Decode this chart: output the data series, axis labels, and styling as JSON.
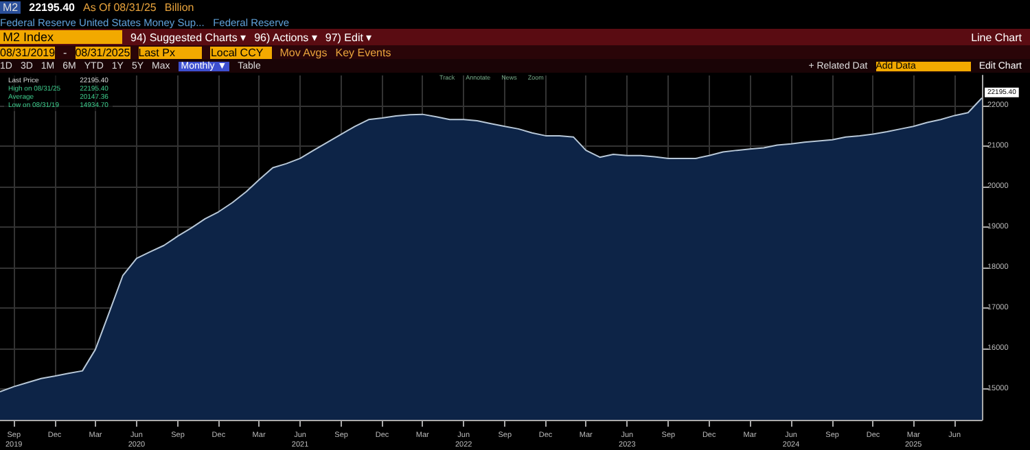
{
  "chart_data": {
    "type": "area",
    "title": "M2 Index",
    "subtitle": "Federal Reserve United States Money Sup...   Federal Reserve",
    "annotations": [
      "M2",
      "22195.40",
      "As Of 08/31/25",
      "Billion",
      "94) Suggested Charts ▾",
      "96) Actions ▾",
      "97) Edit ▾",
      "Line Chart",
      "08/31/2019",
      "-",
      "08/31/2025",
      "Last Px",
      "Local CCY",
      "Mov Avgs",
      "Key Events",
      "1D",
      "3D",
      "1M",
      "6M",
      "YTD",
      "1Y",
      "5Y",
      "Max",
      "Monthly ▼",
      "Table",
      "+ Related Dat",
      "Add Data",
      "Edit Chart",
      "Last Price",
      "22195.40",
      "High on 08/31/25",
      "22195.40",
      "Average",
      "20147.36",
      "Low on 08/31/19",
      "14934.70",
      "Track",
      "Annotate",
      "News",
      "Zoom",
      {
        "text": "22195.40",
        "x": "2025-08",
        "y": 22195.4
      }
    ],
    "x": [
      "2019-08",
      "2019-09",
      "2019-10",
      "2019-11",
      "2019-12",
      "2020-01",
      "2020-02",
      "2020-03",
      "2020-04",
      "2020-05",
      "2020-06",
      "2020-07",
      "2020-08",
      "2020-09",
      "2020-10",
      "2020-11",
      "2020-12",
      "2021-01",
      "2021-02",
      "2021-03",
      "2021-04",
      "2021-05",
      "2021-06",
      "2021-07",
      "2021-08",
      "2021-09",
      "2021-10",
      "2021-11",
      "2021-12",
      "2022-01",
      "2022-02",
      "2022-03",
      "2022-04",
      "2022-05",
      "2022-06",
      "2022-07",
      "2022-08",
      "2022-09",
      "2022-10",
      "2022-11",
      "2022-12",
      "2023-01",
      "2023-02",
      "2023-03",
      "2023-04",
      "2023-05",
      "2023-06",
      "2023-07",
      "2023-08",
      "2023-09",
      "2023-10",
      "2023-11",
      "2023-12",
      "2024-01",
      "2024-02",
      "2024-03",
      "2024-04",
      "2024-05",
      "2024-06",
      "2024-07",
      "2024-08",
      "2024-09",
      "2024-10",
      "2024-11",
      "2024-12",
      "2025-01",
      "2025-02",
      "2025-03",
      "2025-04",
      "2025-05",
      "2025-06",
      "2025-07",
      "2025-08"
    ],
    "values": [
      14934.7,
      15060,
      15160,
      15260,
      15320,
      15390,
      15450,
      15980,
      16900,
      17800,
      18230,
      18390,
      18550,
      18780,
      18980,
      19210,
      19380,
      19610,
      19880,
      20170,
      20470,
      20570,
      20700,
      20900,
      21100,
      21300,
      21490,
      21660,
      21700,
      21750,
      21780,
      21790,
      21730,
      21660,
      21660,
      21630,
      21560,
      21490,
      21430,
      21330,
      21260,
      21260,
      21230,
      20900,
      20730,
      20800,
      20770,
      20770,
      20740,
      20700,
      20700,
      20700,
      20770,
      20860,
      20900,
      20930,
      20960,
      21030,
      21060,
      21100,
      21130,
      21160,
      21230,
      21260,
      21300,
      21360,
      21430,
      21490,
      21590,
      21660,
      21760,
      21830,
      22195.4
    ],
    "color": "#0d2447",
    "xlim": [
      "2019-08",
      "2025-08"
    ],
    "xticks": [
      {
        "value": "2019-09",
        "label": "Sep\n2019"
      },
      {
        "value": "2019-12",
        "label": "Dec"
      },
      {
        "value": "2020-03",
        "label": "Mar"
      },
      {
        "value": "2020-06",
        "label": "Jun\n2020"
      },
      {
        "value": "2020-09",
        "label": "Sep"
      },
      {
        "value": "2020-12",
        "label": "Dec"
      },
      {
        "value": "2021-03",
        "label": "Mar"
      },
      {
        "value": "2021-06",
        "label": "Jun\n2021"
      },
      {
        "value": "2021-09",
        "label": "Sep"
      },
      {
        "value": "2021-12",
        "label": "Dec"
      },
      {
        "value": "2022-03",
        "label": "Mar"
      },
      {
        "value": "2022-06",
        "label": "Jun\n2022"
      },
      {
        "value": "2022-09",
        "label": "Sep"
      },
      {
        "value": "2022-12",
        "label": "Dec"
      },
      {
        "value": "2023-03",
        "label": "Mar"
      },
      {
        "value": "2023-06",
        "label": "Jun\n2023"
      },
      {
        "value": "2023-09",
        "label": "Sep"
      },
      {
        "value": "2023-12",
        "label": "Dec"
      },
      {
        "value": "2024-03",
        "label": "Mar"
      },
      {
        "value": "2024-06",
        "label": "Jun\n2024"
      },
      {
        "value": "2024-09",
        "label": "Sep"
      },
      {
        "value": "2024-12",
        "label": "Dec"
      },
      {
        "value": "2025-03",
        "label": "Mar\n2025"
      },
      {
        "value": "2025-06",
        "label": "Jun"
      }
    ],
    "ylim": [
      14240,
      22750
    ],
    "yticks": [
      15000,
      16000,
      17000,
      18000,
      19000,
      20000,
      21000,
      22000
    ],
    "grid": true
  }
}
